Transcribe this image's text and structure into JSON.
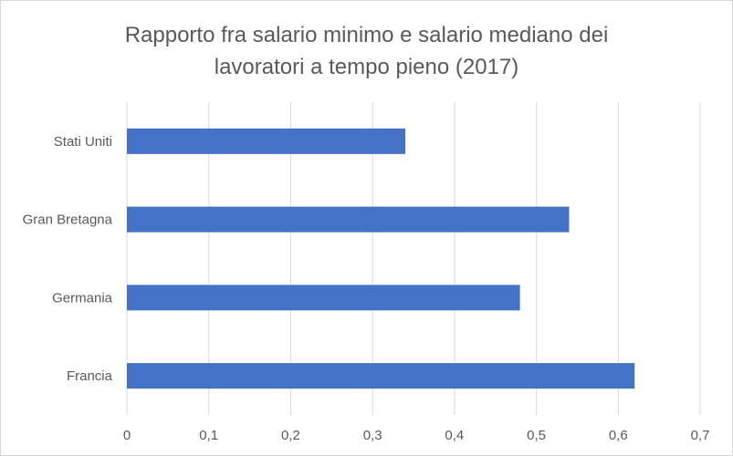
{
  "chart_data": {
    "type": "bar",
    "orientation": "horizontal",
    "title": "Rapporto fra salario minimo e salario mediano dei\nlavoratori a tempo pieno (2017)",
    "categories": [
      "Stati Uniti",
      "Gran Bretagna",
      "Germania",
      "Francia"
    ],
    "values": [
      0.34,
      0.54,
      0.48,
      0.62
    ],
    "xlim": [
      0,
      0.7
    ],
    "xticks": [
      0,
      0.1,
      0.2,
      0.3,
      0.4,
      0.5,
      0.6,
      0.7
    ],
    "xtick_labels": [
      "0",
      "0,1",
      "0,2",
      "0,3",
      "0,4",
      "0,5",
      "0,6",
      "0,7"
    ],
    "grid": "vertical",
    "legend": "none",
    "bar_color": "#4472c4",
    "grid_color": "#d9d9d9"
  }
}
